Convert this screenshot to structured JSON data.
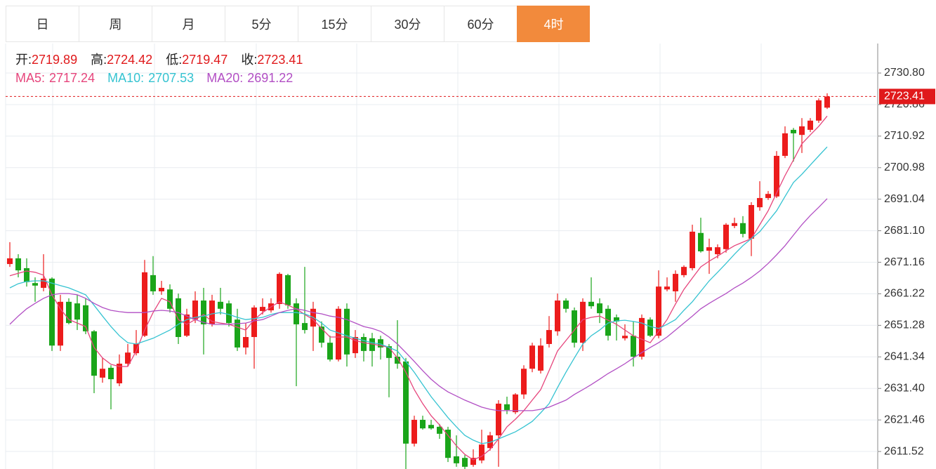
{
  "tabs": [
    "日",
    "周",
    "月",
    "5分",
    "15分",
    "30分",
    "60分",
    "4时"
  ],
  "active_tab": 7,
  "chart_data": {
    "type": "candlestick",
    "ohlc_labels": [
      "开:",
      "高:",
      "低:",
      "收:"
    ],
    "up_color": "#ec1c1c",
    "down_color": "#1aa51a",
    "open": [
      2670.6,
      2672.4,
      2669.3,
      2664.6,
      2663.1,
      2666.0,
      2644.9,
      2658.7,
      2658.2,
      2657.6,
      2649.4,
      2634.8,
      2637.9,
      2633.0,
      2639.2,
      2642.5,
      2648.0,
      2667.1,
      2662.0,
      2662.6,
      2659.8,
      2648.0,
      2653.1,
      2659.1,
      2651.6,
      2658.7,
      2658.2,
      2653.1,
      2644.3,
      2647.6,
      2655.8,
      2656.0,
      2658.0,
      2667.1,
      2658.2,
      2652.0,
      2650.9,
      2650.9,
      2645.8,
      2640.5,
      2656.5,
      2642.5,
      2647.6,
      2647.2,
      2646.9,
      2644.7,
      2641.4,
      2639.9,
      2614.0,
      2621.5,
      2619.9,
      2619.3,
      2618.4,
      2610.0,
      2609.5,
      2607.3,
      2608.7,
      2612.6,
      2616.6,
      2626.4,
      2623.9,
      2629.5,
      2637.6,
      2637.0,
      2645.4,
      2649.4,
      2659.1,
      2656.0,
      2645.8,
      2658.7,
      2658.2,
      2656.5,
      2653.8,
      2647.2,
      2648.0,
      2641.4,
      2653.1,
      2648.0,
      2662.6,
      2662.0,
      2667.1,
      2669.3,
      2680.4,
      2674.8,
      2673.7,
      2675.3,
      2682.6,
      2683.5,
      2678.6,
      2688.5,
      2691.4,
      2691.9,
      2704.7,
      2712.9,
      2711.3,
      2712.9,
      2715.8,
      2719.89
    ],
    "high": [
      2677.5,
      2673.7,
      2672.4,
      2666.4,
      2673.7,
      2666.4,
      2660.9,
      2659.8,
      2660.9,
      2659.8,
      2649.8,
      2641.0,
      2638.7,
      2642.1,
      2645.4,
      2649.8,
      2671.9,
      2673.1,
      2665.3,
      2664.2,
      2661.3,
      2656.5,
      2662.0,
      2663.1,
      2660.9,
      2663.1,
      2659.1,
      2656.5,
      2652.0,
      2657.6,
      2659.8,
      2659.8,
      2668.0,
      2667.5,
      2659.8,
      2669.7,
      2658.7,
      2652.5,
      2648.0,
      2657.3,
      2658.2,
      2649.8,
      2648.7,
      2648.9,
      2648.0,
      2645.4,
      2652.9,
      2641.0,
      2622.8,
      2622.8,
      2621.5,
      2620.2,
      2619.3,
      2616.6,
      2610.4,
      2612.2,
      2618.4,
      2617.7,
      2627.7,
      2628.8,
      2629.9,
      2638.7,
      2645.8,
      2647.2,
      2654.2,
      2661.3,
      2659.8,
      2656.9,
      2659.8,
      2666.4,
      2659.8,
      2657.6,
      2654.7,
      2651.6,
      2652.5,
      2654.7,
      2653.8,
      2668.6,
      2666.4,
      2668.6,
      2670.2,
      2683.0,
      2685.2,
      2678.6,
      2676.8,
      2683.5,
      2685.2,
      2685.7,
      2690.1,
      2696.7,
      2693.6,
      2706.2,
      2714.0,
      2713.5,
      2716.6,
      2716.6,
      2722.8,
      2724.42
    ],
    "low": [
      2669.7,
      2666.4,
      2663.5,
      2658.7,
      2662.0,
      2643.2,
      2643.2,
      2651.6,
      2649.8,
      2648.5,
      2629.9,
      2633.2,
      2624.8,
      2632.1,
      2638.3,
      2641.8,
      2647.6,
      2660.9,
      2660.9,
      2655.3,
      2645.4,
      2647.6,
      2652.0,
      2642.1,
      2650.9,
      2654.7,
      2650.9,
      2643.2,
      2642.1,
      2637.6,
      2654.7,
      2655.3,
      2656.5,
      2656.5,
      2632.1,
      2648.7,
      2643.2,
      2644.3,
      2639.9,
      2639.9,
      2638.3,
      2641.0,
      2639.9,
      2638.3,
      2640.5,
      2628.6,
      2637.6,
      2606.0,
      2613.1,
      2618.4,
      2618.4,
      2615.5,
      2608.2,
      2606.7,
      2606.0,
      2606.7,
      2607.8,
      2611.8,
      2606.7,
      2623.3,
      2623.3,
      2628.1,
      2636.5,
      2636.1,
      2644.3,
      2648.0,
      2655.3,
      2644.3,
      2643.2,
      2656.5,
      2652.0,
      2646.5,
      2646.5,
      2646.5,
      2638.3,
      2640.5,
      2647.6,
      2647.2,
      2662.0,
      2658.7,
      2666.4,
      2668.6,
      2674.2,
      2667.5,
      2672.4,
      2674.2,
      2681.9,
      2679.0,
      2673.1,
      2687.4,
      2690.8,
      2691.4,
      2704.0,
      2702.9,
      2705.6,
      2712.2,
      2715.1,
      2719.47
    ],
    "close": [
      2672.4,
      2668.6,
      2664.9,
      2663.8,
      2666.0,
      2644.9,
      2658.7,
      2652.0,
      2653.1,
      2649.4,
      2635.4,
      2637.6,
      2634.3,
      2639.2,
      2642.7,
      2645.4,
      2668.0,
      2662.0,
      2663.1,
      2656.5,
      2647.6,
      2654.7,
      2659.1,
      2651.6,
      2659.1,
      2656.5,
      2652.0,
      2644.3,
      2647.6,
      2656.9,
      2657.1,
      2658.2,
      2667.5,
      2657.6,
      2651.6,
      2649.8,
      2656.5,
      2645.8,
      2640.5,
      2656.5,
      2642.1,
      2647.6,
      2643.2,
      2643.2,
      2644.3,
      2641.0,
      2639.2,
      2614.0,
      2621.5,
      2618.8,
      2618.8,
      2617.1,
      2609.5,
      2607.8,
      2606.7,
      2609.5,
      2613.7,
      2616.6,
      2626.6,
      2624.6,
      2629.5,
      2637.6,
      2644.9,
      2644.9,
      2649.8,
      2659.1,
      2656.5,
      2645.8,
      2658.7,
      2657.3,
      2655.1,
      2648.0,
      2652.5,
      2648.0,
      2641.4,
      2653.6,
      2648.0,
      2663.5,
      2663.5,
      2667.5,
      2669.7,
      2680.8,
      2674.6,
      2675.9,
      2675.9,
      2683.0,
      2683.5,
      2680.1,
      2689.2,
      2691.4,
      2692.7,
      2704.7,
      2711.8,
      2711.8,
      2714.0,
      2715.8,
      2722.2,
      2723.41
    ],
    "ma": [
      {
        "name": "MA5:",
        "color": "#e6457c",
        "values": [
          2666.9,
          2667.7,
          2668.4,
          2668.0,
          2667.1,
          2660.9,
          2656.5,
          2653.1,
          2652.0,
          2650.9,
          2644.3,
          2641.0,
          2639.0,
          2638.3,
          2638.3,
          2643.2,
          2649.8,
          2655.3,
          2659.8,
          2658.7,
          2653.1,
          2651.6,
          2653.1,
          2654.7,
          2652.5,
          2652.0,
          2651.6,
          2650.7,
          2649.8,
          2653.1,
          2655.3,
          2657.1,
          2658.7,
          2657.6,
          2656.5,
          2654.7,
          2653.1,
          2650.3,
          2647.6,
          2647.6,
          2647.6,
          2646.5,
          2645.8,
          2645.4,
          2644.9,
          2644.3,
          2641.0,
          2636.5,
          2631.0,
          2626.6,
          2622.8,
          2619.9,
          2616.6,
          2613.3,
          2610.6,
          2608.9,
          2610.0,
          2612.2,
          2615.5,
          2619.3,
          2621.7,
          2624.4,
          2627.7,
          2631.0,
          2637.0,
          2643.2,
          2646.5,
          2649.8,
          2653.1,
          2653.8,
          2654.2,
          2652.9,
          2651.6,
          2649.8,
          2648.0,
          2646.9,
          2645.8,
          2649.4,
          2653.1,
          2658.0,
          2662.6,
          2666.2,
          2669.7,
          2671.5,
          2673.1,
          2674.8,
          2676.4,
          2677.5,
          2678.6,
          2683.0,
          2687.4,
          2693.0,
          2698.5,
          2703.4,
          2708.5,
          2711.3,
          2714.0,
          2717.24
        ]
      },
      {
        "name": "MA10:",
        "color": "#35c3d1",
        "values": [
          2663.1,
          2664.4,
          2665.1,
          2665.3,
          2665.3,
          2664.6,
          2663.8,
          2663.1,
          2662.0,
          2660.9,
          2657.6,
          2654.2,
          2650.9,
          2648.0,
          2645.8,
          2645.4,
          2646.3,
          2647.2,
          2648.5,
          2649.8,
          2651.6,
          2653.1,
          2653.8,
          2654.2,
          2654.9,
          2655.3,
          2654.7,
          2653.8,
          2653.1,
          2653.4,
          2653.8,
          2654.7,
          2655.3,
          2655.3,
          2655.3,
          2654.9,
          2653.8,
          2652.0,
          2649.8,
          2648.9,
          2648.0,
          2647.2,
          2646.5,
          2645.8,
          2645.4,
          2644.3,
          2643.2,
          2639.9,
          2636.5,
          2632.6,
          2628.8,
          2625.5,
          2622.2,
          2619.3,
          2616.6,
          2615.1,
          2614.0,
          2614.4,
          2615.5,
          2616.6,
          2617.7,
          2619.3,
          2621.0,
          2623.7,
          2626.6,
          2631.7,
          2636.5,
          2641.0,
          2645.4,
          2648.0,
          2649.8,
          2652.0,
          2652.7,
          2652.9,
          2652.5,
          2652.0,
          2650.9,
          2650.3,
          2651.6,
          2653.1,
          2656.0,
          2658.7,
          2662.0,
          2665.3,
          2668.0,
          2670.8,
          2673.7,
          2676.4,
          2678.6,
          2680.8,
          2684.1,
          2687.4,
          2691.9,
          2696.3,
          2698.9,
          2701.8,
          2704.7,
          2707.53
        ]
      },
      {
        "name": "MA20:",
        "color": "#b24fc4",
        "values": [
          2651.6,
          2654.2,
          2656.5,
          2658.2,
          2659.8,
          2660.9,
          2661.3,
          2661.3,
          2660.9,
          2659.8,
          2658.2,
          2656.9,
          2656.0,
          2655.6,
          2655.3,
          2655.3,
          2655.3,
          2655.8,
          2656.0,
          2655.8,
          2655.3,
          2654.2,
          2653.1,
          2652.2,
          2651.6,
          2651.6,
          2651.6,
          2651.8,
          2652.0,
          2652.7,
          2653.1,
          2654.2,
          2655.3,
          2656.0,
          2656.5,
          2656.0,
          2655.3,
          2654.9,
          2654.2,
          2653.8,
          2653.1,
          2652.0,
          2650.9,
          2650.3,
          2649.4,
          2647.6,
          2645.4,
          2642.7,
          2639.9,
          2637.0,
          2634.3,
          2632.1,
          2630.3,
          2629.0,
          2627.7,
          2626.6,
          2625.5,
          2624.8,
          2624.4,
          2624.4,
          2624.4,
          2624.4,
          2624.4,
          2624.8,
          2625.5,
          2626.6,
          2627.7,
          2629.5,
          2631.0,
          2632.6,
          2634.3,
          2636.1,
          2637.6,
          2639.2,
          2641.0,
          2642.7,
          2644.3,
          2645.8,
          2647.6,
          2649.8,
          2652.0,
          2654.2,
          2656.5,
          2658.2,
          2659.8,
          2661.3,
          2663.1,
          2664.6,
          2666.4,
          2668.4,
          2670.8,
          2673.5,
          2676.4,
          2679.7,
          2683.0,
          2685.9,
          2688.5,
          2691.22
        ]
      }
    ],
    "ylim": [
      2606.0,
      2740.1
    ],
    "yticks": [
      {
        "value": 2730.8,
        "label": "2730.80"
      },
      2720.86,
      2710.92,
      2700.98,
      2691.04,
      {
        "value": 2681.1,
        "label": "2681.10"
      },
      2671.16,
      2661.22,
      2651.28,
      2641.34,
      {
        "value": 2631.4,
        "label": "2631.40"
      },
      2621.46,
      2611.52
    ],
    "grid": true,
    "last_price_line": true
  }
}
